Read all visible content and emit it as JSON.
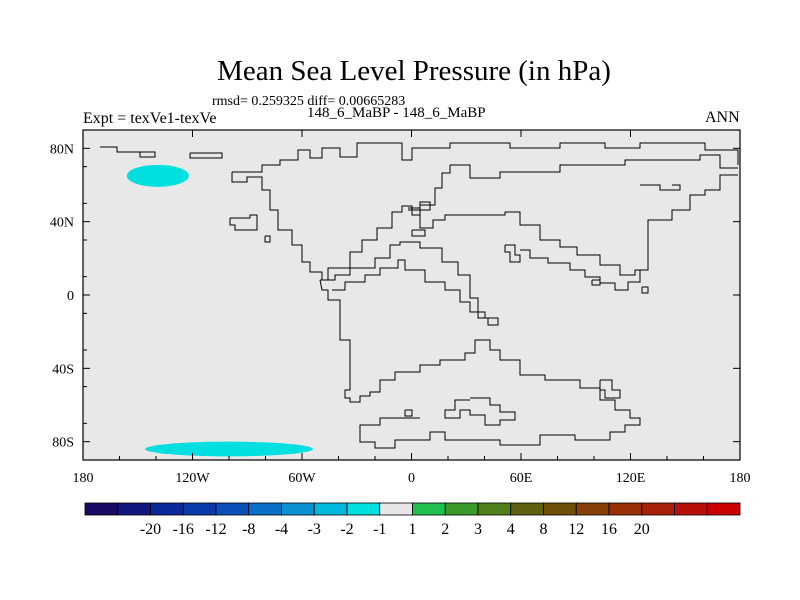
{
  "title": "Mean Sea Level Pressure (in hPa)",
  "stats": "rmsd= 0.259325 diff= 0.00665283",
  "expt": "Expt = texVe1-texVe",
  "case_label": "148_6_MaBP - 148_6_MaBP",
  "season": "ANN",
  "chart_data": {
    "type": "heatmap",
    "title": "Mean Sea Level Pressure (in hPa)",
    "xlabel": "",
    "ylabel": "",
    "xlim": [
      -180,
      180
    ],
    "ylim": [
      -90,
      90
    ],
    "x_ticks": [
      -180,
      -120,
      -60,
      0,
      60,
      120,
      180
    ],
    "x_tick_labels": [
      "180",
      "120W",
      "60W",
      "0",
      "60E",
      "120E",
      "180"
    ],
    "y_ticks": [
      80,
      40,
      0,
      -40,
      -80
    ],
    "y_tick_labels": [
      "80N",
      "40N",
      "0",
      "40S",
      "80S"
    ],
    "background_color": "#e8e8e8",
    "anomaly_regions": [
      {
        "label": "-1 to -2",
        "color": "#00dfe0",
        "center": [
          -139,
          65
        ],
        "lon_range": [
          -157,
          -123
        ],
        "lat_range": [
          59,
          71
        ]
      },
      {
        "label": "-1 to -2",
        "color": "#00dfe0",
        "center": [
          -100,
          -84
        ],
        "lon_range": [
          -144,
          -52
        ],
        "lat_range": [
          -88,
          -80
        ]
      }
    ],
    "colorbar": {
      "colors": [
        "#1a0a64",
        "#14167f",
        "#0a2a99",
        "#0a3aaa",
        "#0a50b8",
        "#0a6fc8",
        "#0a92d2",
        "#00b7dc",
        "#00dfe0",
        "#e6e6e6",
        "#20c050",
        "#3a9a2a",
        "#50801a",
        "#606010",
        "#705008",
        "#884008",
        "#983008",
        "#a82008",
        "#b81008",
        "#cc0000"
      ],
      "labels": [
        "-20",
        "-16",
        "-12",
        "-8",
        "-4",
        "-3",
        "-2",
        "-1",
        "1",
        "2",
        "3",
        "4",
        "8",
        "12",
        "16",
        "20"
      ]
    }
  }
}
